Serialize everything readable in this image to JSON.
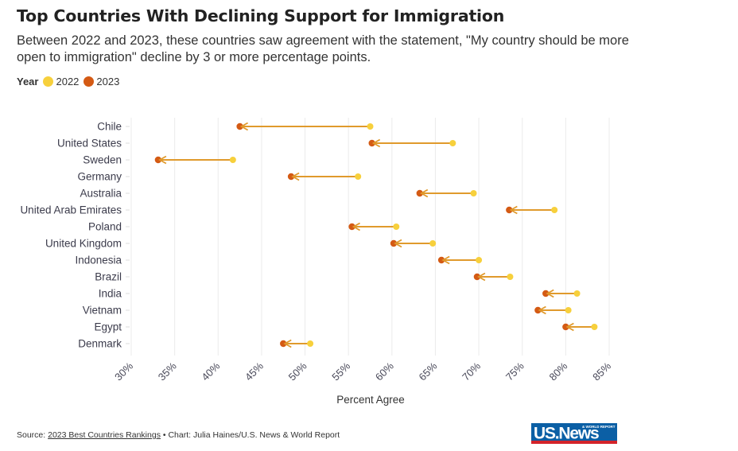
{
  "header": {
    "title": "Top Countries With Declining Support for Immigration",
    "subtitle": "Between 2022 and 2023, these countries saw agreement with the statement, \"My country should be more open to immigration\" decline by 3 or more percentage points."
  },
  "legend": {
    "title": "Year",
    "items": [
      {
        "label": "2022",
        "color": "#f7d03c"
      },
      {
        "label": "2023",
        "color": "#d45a14"
      }
    ]
  },
  "chart_data": {
    "type": "dumbbell",
    "title": "Top Countries With Declining Support for Immigration",
    "xlabel": "Percent Agree",
    "ylabel": "",
    "xlim": [
      30,
      85
    ],
    "x_ticks": [
      "30%",
      "35%",
      "40%",
      "45%",
      "50%",
      "55%",
      "60%",
      "65%",
      "70%",
      "75%",
      "80%",
      "85%"
    ],
    "x_tick_values": [
      30,
      35,
      40,
      45,
      50,
      55,
      60,
      65,
      70,
      75,
      80,
      85
    ],
    "grid": true,
    "legend_position": "top-left",
    "categories": [
      "Chile",
      "United States",
      "Sweden",
      "Germany",
      "Australia",
      "United Arab Emirates",
      "Poland",
      "United Kingdom",
      "Indonesia",
      "Brazil",
      "India",
      "Vietnam",
      "Egypt",
      "Denmark"
    ],
    "series": [
      {
        "name": "2022",
        "color": "#f7d03c",
        "values": [
          57.5,
          67.0,
          41.7,
          56.1,
          69.4,
          78.7,
          60.5,
          64.7,
          70.0,
          73.6,
          81.3,
          80.3,
          83.3,
          50.6
        ]
      },
      {
        "name": "2023",
        "color": "#d45a14",
        "values": [
          42.5,
          57.7,
          33.1,
          48.4,
          63.2,
          73.5,
          55.4,
          60.2,
          65.7,
          69.8,
          77.7,
          76.8,
          80.0,
          47.5
        ]
      }
    ],
    "connector_color": "#e09a2c"
  },
  "footer": {
    "source_prefix": "Source: ",
    "source_link": "2023 Best Countries Rankings",
    "credit": " • Chart: Julia Haines/U.S. News & World Report"
  },
  "logo": {
    "text": "US.News",
    "tagline": "& WORLD REPORT",
    "bg_color": "#0b5fa5",
    "stripe_color": "#d3232a"
  }
}
